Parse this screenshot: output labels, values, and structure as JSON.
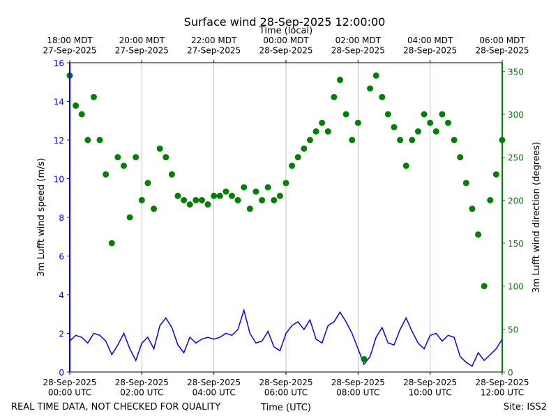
{
  "chart_data": {
    "type": "line",
    "title": "Surface wind 28-Sep-2025 12:00:00",
    "x_label": "Time (UTC)",
    "x2_label": "Time (local)",
    "y_label": "3m Lufft wind speed (m/s)",
    "y2_label": "3m Lufft wind direction (degrees)",
    "footer_left": "REAL TIME DATA, NOT CHECKED FOR QUALITY",
    "footer_right": "Site: ISS2",
    "x": [
      0,
      10,
      20,
      30,
      40,
      50,
      60,
      70,
      80,
      90,
      100,
      110,
      120,
      130,
      140,
      150,
      160,
      170,
      180,
      190,
      200,
      210,
      220,
      230,
      240,
      250,
      260,
      270,
      280,
      290,
      300,
      310,
      320,
      330,
      340,
      350,
      360,
      370,
      380,
      390,
      400,
      410,
      420,
      430,
      440,
      450,
      460,
      470,
      480,
      490,
      500,
      510,
      520,
      530,
      540,
      550,
      560,
      570,
      580,
      590,
      600,
      610,
      620,
      630,
      640,
      650,
      660,
      670,
      680,
      690,
      700,
      710,
      720
    ],
    "xlim": [
      0,
      720
    ],
    "xticks": [
      {
        "value": 0,
        "label": "28-Sep-2025\n00:00 UTC"
      },
      {
        "value": 120,
        "label": "28-Sep-2025\n02:00 UTC"
      },
      {
        "value": 240,
        "label": "28-Sep-2025\n04:00 UTC"
      },
      {
        "value": 360,
        "label": "28-Sep-2025\n06:00 UTC"
      },
      {
        "value": 480,
        "label": "28-Sep-2025\n08:00 UTC"
      },
      {
        "value": 600,
        "label": "28-Sep-2025\n10:00 UTC"
      },
      {
        "value": 720,
        "label": "28-Sep-2025\n12:00 UTC"
      }
    ],
    "x2ticks": [
      {
        "value": 0,
        "label": "18:00 MDT\n27-Sep-2025"
      },
      {
        "value": 120,
        "label": "20:00 MDT\n27-Sep-2025"
      },
      {
        "value": 240,
        "label": "22:00 MDT\n27-Sep-2025"
      },
      {
        "value": 360,
        "label": "00:00 MDT\n28-Sep-2025"
      },
      {
        "value": 480,
        "label": "02:00 MDT\n28-Sep-2025"
      },
      {
        "value": 600,
        "label": "04:00 MDT\n28-Sep-2025"
      },
      {
        "value": 720,
        "label": "06:00 MDT\n28-Sep-2025"
      }
    ],
    "ylim": [
      0,
      16
    ],
    "yticks": [
      0,
      2,
      4,
      6,
      8,
      10,
      12,
      14,
      16
    ],
    "y2lim": [
      0,
      360
    ],
    "y2ticks": [
      0,
      50,
      100,
      150,
      200,
      250,
      300,
      350
    ],
    "grid": "x",
    "y_color": "#0000ff",
    "y2_color": "#008000",
    "series": [
      {
        "type": "line",
        "color": "#0000ff",
        "values": [
          1.6,
          1.9,
          1.8,
          1.5,
          2.0,
          1.9,
          1.6,
          0.9,
          1.4,
          2.0,
          1.2,
          0.6,
          1.5,
          1.8,
          1.2,
          2.4,
          2.8,
          2.3,
          1.4,
          1.0,
          1.8,
          1.5,
          1.7,
          1.8,
          1.7,
          1.8,
          2.0,
          1.9,
          2.2,
          3.2,
          2.0,
          1.5,
          1.6,
          2.1,
          1.3,
          1.1,
          2.0,
          2.4,
          2.6,
          2.2,
          2.7,
          1.7,
          1.5,
          2.4,
          2.6,
          3.1,
          2.6,
          2.0,
          1.2,
          0.4,
          0.8,
          1.8,
          2.3,
          1.5,
          1.4,
          2.2,
          2.8,
          2.1,
          1.5,
          1.2,
          1.9,
          2.0,
          1.6,
          1.9,
          1.8,
          0.8,
          0.5,
          0.3,
          1.0,
          0.6,
          0.9,
          1.2,
          1.7
        ]
      },
      {
        "type": "scatter",
        "axis": "y2",
        "color": "#008000",
        "values": [
          345,
          310,
          300,
          270,
          320,
          270,
          230,
          150,
          250,
          240,
          180,
          250,
          200,
          220,
          190,
          260,
          250,
          230,
          205,
          200,
          195,
          200,
          200,
          195,
          205,
          205,
          210,
          205,
          200,
          215,
          190,
          210,
          200,
          215,
          200,
          205,
          220,
          240,
          250,
          260,
          270,
          280,
          290,
          280,
          320,
          340,
          300,
          270,
          290,
          15,
          330,
          345,
          320,
          300,
          285,
          270,
          240,
          270,
          280,
          300,
          290,
          280,
          300,
          290,
          270,
          250,
          220,
          190,
          160,
          100,
          200,
          230,
          270
        ]
      }
    ]
  }
}
